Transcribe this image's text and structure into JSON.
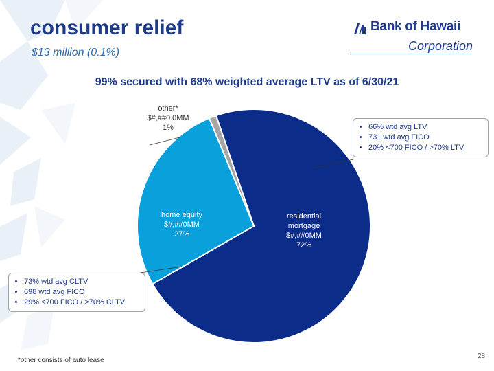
{
  "header": {
    "title": "consumer relief",
    "subtitle": "$13 million (0.1%)"
  },
  "logo": {
    "name": "Bank of Hawaii",
    "sub": "Corporation"
  },
  "headline": "99% secured with 68% weighted average LTV as of 6/30/21",
  "chart_data": {
    "type": "pie",
    "slices": [
      {
        "name": "residential mortgage",
        "name_lines": [
          "residential",
          "mortgage"
        ],
        "amount": "$#,##0MM",
        "percent_label": "72%",
        "value": 72,
        "color": "#0b2c89"
      },
      {
        "name": "home equity",
        "name_lines": [
          "home equity"
        ],
        "amount": "$#,##0MM",
        "percent_label": "27%",
        "value": 27,
        "color": "#0aa0dc"
      },
      {
        "name": "other*",
        "name_lines": [
          "other*"
        ],
        "amount": "$#,##0.0MM",
        "percent_label": "1%",
        "value": 1,
        "color": "#a6a6a6"
      }
    ]
  },
  "callouts": {
    "residential": [
      "66% wtd avg LTV",
      "731 wtd avg FICO",
      "20% <700 FICO / >70% LTV"
    ],
    "home_equity": [
      "73% wtd avg CLTV",
      "698 wtd avg FICO",
      "29% <700 FICO / >70% CLTV"
    ]
  },
  "footnote": "*other consists of auto lease",
  "page_number": "28",
  "colors": {
    "title": "#1e3a8a",
    "subtitle": "#2b6cb0",
    "background_decoration": "#e9f0f7"
  }
}
